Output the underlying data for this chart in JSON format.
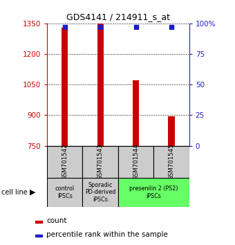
{
  "title": "GDS4141 / 214911_s_at",
  "samples": [
    "GSM701542",
    "GSM701543",
    "GSM701544",
    "GSM701545"
  ],
  "counts": [
    1330,
    1348,
    1070,
    893
  ],
  "percentile_ranks": [
    97,
    97,
    97,
    97
  ],
  "count_min": 750,
  "count_max": 1350,
  "percentile_min": 0,
  "percentile_max": 100,
  "yticks_left": [
    750,
    900,
    1050,
    1200,
    1350
  ],
  "yticks_right": [
    0,
    25,
    50,
    75,
    100
  ],
  "bar_color": "#cc0000",
  "dot_color": "#1c1ccc",
  "bar_width": 0.18,
  "groups": [
    {
      "label": "control\nIPSCs",
      "ncols": 1,
      "color": "#cccccc"
    },
    {
      "label": "Sporadic\nPD-derived\niPSCs",
      "ncols": 1,
      "color": "#cccccc"
    },
    {
      "label": "presenilin 2 (PS2)\niPSCs",
      "ncols": 2,
      "color": "#66ff66"
    }
  ],
  "cell_line_label": "cell line",
  "legend_count_label": "count",
  "legend_percentile_label": "percentile rank within the sample",
  "tick_color_left": "#cc0000",
  "tick_color_right": "#1c1ccc",
  "sample_box_color": "#cccccc"
}
